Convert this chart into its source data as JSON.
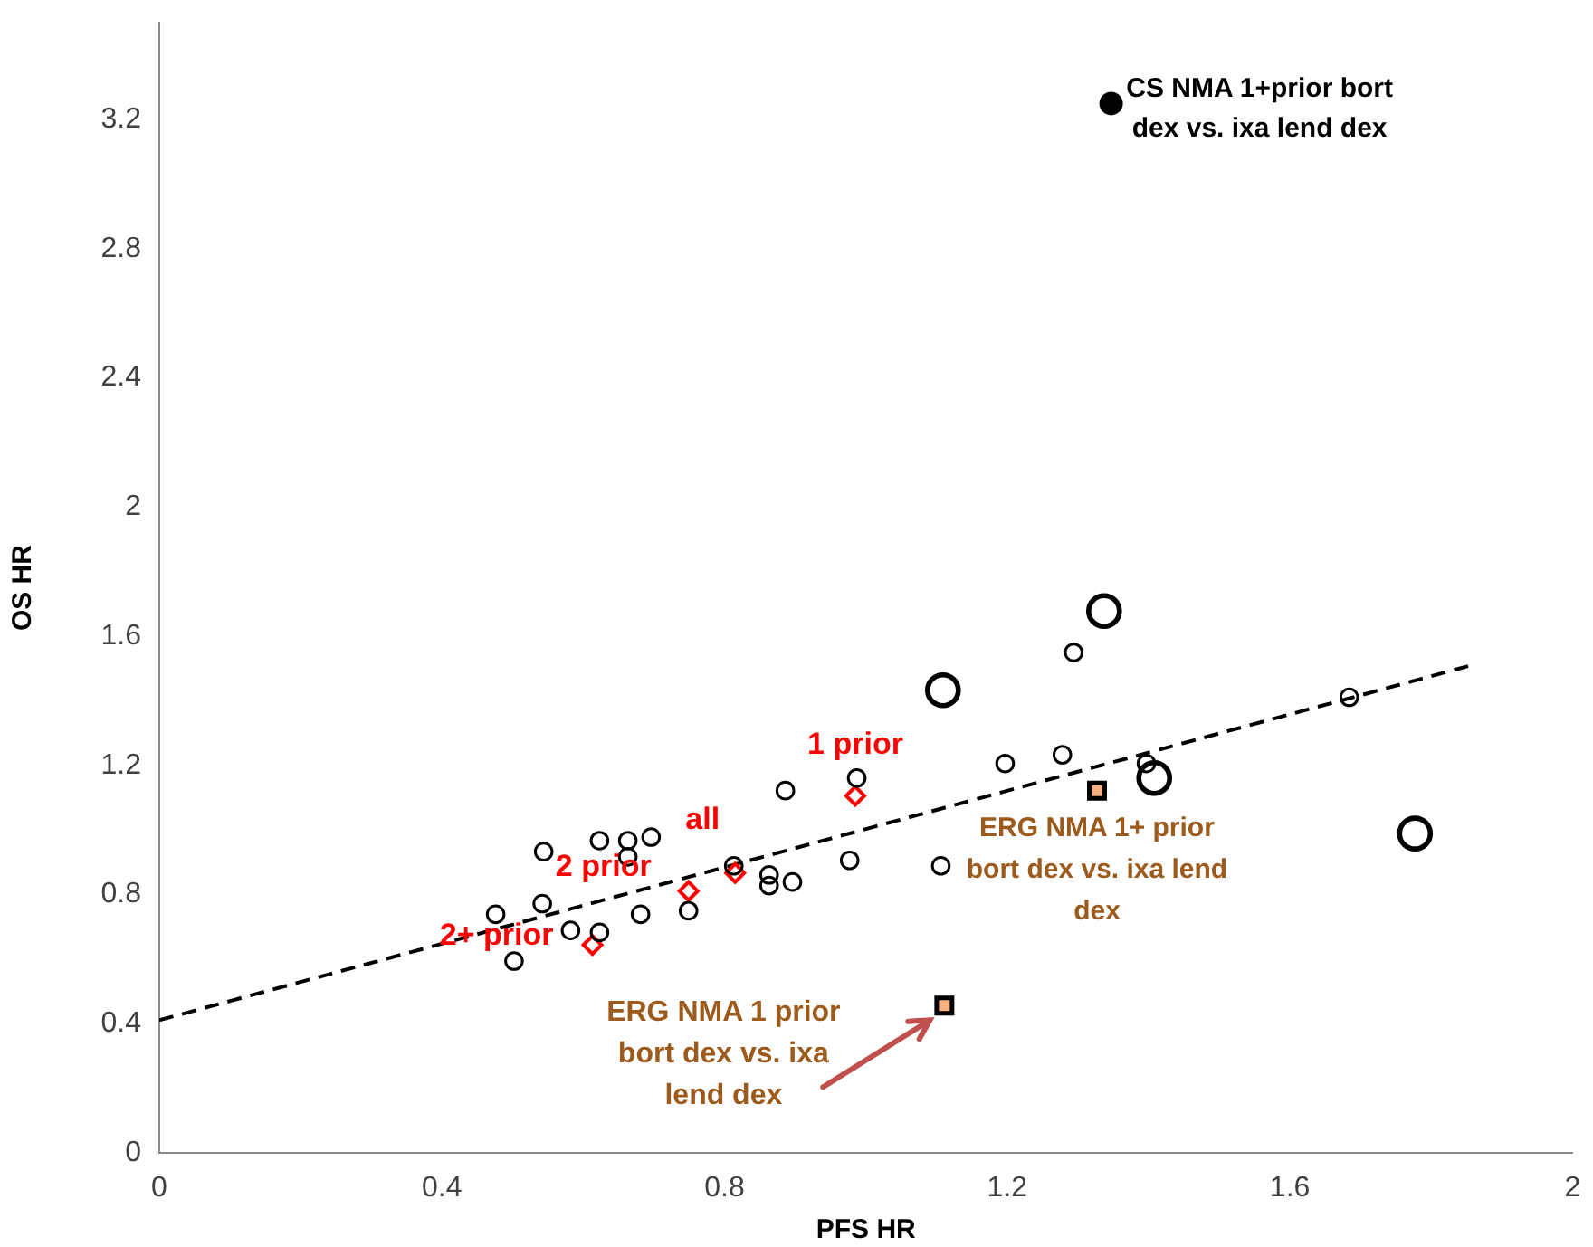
{
  "chart_data": {
    "type": "scatter",
    "xlabel": "PFS HR",
    "ylabel": "OS HR",
    "xlim": [
      0,
      2
    ],
    "xticks": [
      0,
      0.4,
      0.8,
      1.2,
      1.6,
      2
    ],
    "ylim": [
      0,
      3.5
    ],
    "yticks": [
      0,
      0.4,
      0.8,
      1.2,
      1.6,
      2,
      2.4,
      2.8,
      3.2
    ],
    "grid": false,
    "legend": false,
    "series": [
      {
        "type": "bubble",
        "color": "#000000",
        "marker": "circle",
        "x": [
          0.476,
          0.544,
          0.542,
          0.502,
          0.582,
          0.623,
          0.623,
          0.663,
          0.663,
          0.696,
          0.681,
          0.749,
          0.813,
          0.863,
          0.863,
          0.896,
          0.886,
          0.987,
          0.977,
          1.106,
          1.197,
          1.278,
          1.294,
          1.397,
          1.684
        ],
        "values": [
          0.739,
          0.933,
          0.772,
          0.594,
          0.689,
          0.683,
          0.967,
          0.967,
          0.917,
          0.978,
          0.739,
          0.75,
          0.889,
          0.861,
          0.828,
          0.839,
          1.122,
          1.161,
          0.906,
          0.889,
          1.206,
          1.233,
          1.55,
          1.206,
          1.411
        ],
        "sizes": [
          0.3,
          0.3,
          0.3,
          0.3,
          0.3,
          0.3,
          0.3,
          0.3,
          0.3,
          0.3,
          0.3,
          0.3,
          0.3,
          0.3,
          0.3,
          0.3,
          0.3,
          0.3,
          0.3,
          0.3,
          0.3,
          0.3,
          0.3,
          0.3,
          0.3
        ]
      },
      {
        "type": "bubble",
        "color": "#000000",
        "marker": "circle",
        "x": [
          1.109,
          1.337,
          1.408,
          1.777
        ],
        "values": [
          1.433,
          1.678,
          1.161,
          0.989
        ],
        "sizes": [
          1,
          1,
          1,
          1
        ]
      },
      {
        "type": "scatter",
        "color": "#ff0000",
        "marker": "diamond",
        "x": [
          0.613,
          0.749,
          0.815,
          0.985
        ],
        "values": [
          0.644,
          0.811,
          0.867,
          1.106
        ]
      },
      {
        "type": "scatter",
        "name": "CS NMA 1+prior bort dex vs. ixa lend dex",
        "color": "#000000",
        "marker": "circle",
        "x": [
          1.347
        ],
        "values": [
          3.25
        ]
      },
      {
        "type": "scatter",
        "name": "ERG NMA 1+ prior bort dex vs. ixa lend dex",
        "color": "#f4b183",
        "marker": "square",
        "x": [
          1.327
        ],
        "values": [
          1.122
        ]
      },
      {
        "type": "scatter",
        "name": "ERG NMA 1 prior bort dex vs. ixa lend dex",
        "color": "#f4b183",
        "marker": "square",
        "x": [
          1.111
        ],
        "values": [
          0.456
        ]
      },
      {
        "type": "line",
        "color": "#000000",
        "marker": "none",
        "line_style": "dashed",
        "x": [
          0,
          1.858
        ],
        "values": [
          0.411,
          1.511
        ]
      }
    ],
    "annotations": [
      {
        "text": "1 prior",
        "x": 0.985,
        "y": 1.106
      },
      {
        "text": "all",
        "x": 0.815,
        "y": 0.867
      },
      {
        "text": "2 prior",
        "x": 0.749,
        "y": 0.811
      },
      {
        "text": "2+ prior",
        "x": 0.613,
        "y": 0.644
      }
    ]
  }
}
